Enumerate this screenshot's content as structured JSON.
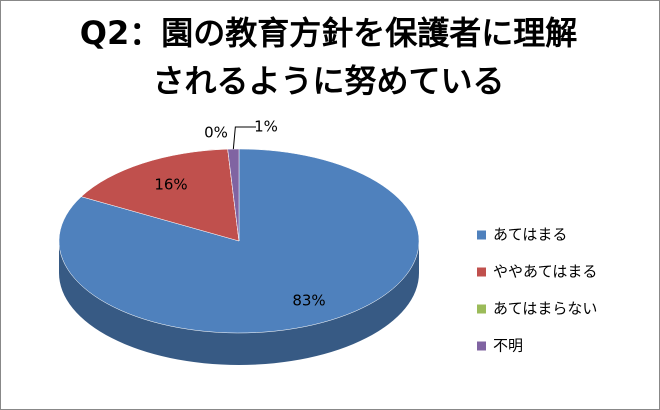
{
  "chart_data": {
    "type": "pie",
    "title": "Q2：園の教育方針を保護者に理解されるように努めている",
    "categories": [
      "あてはまる",
      "ややあてはまる",
      "あてはまらない",
      "不明"
    ],
    "values": [
      83,
      16,
      0,
      1
    ],
    "value_labels": [
      "83%",
      "16%",
      "0%",
      "1%"
    ],
    "colors": [
      "#4f81bd",
      "#c0504d",
      "#9bbb59",
      "#8064a2"
    ],
    "legend": "right"
  }
}
